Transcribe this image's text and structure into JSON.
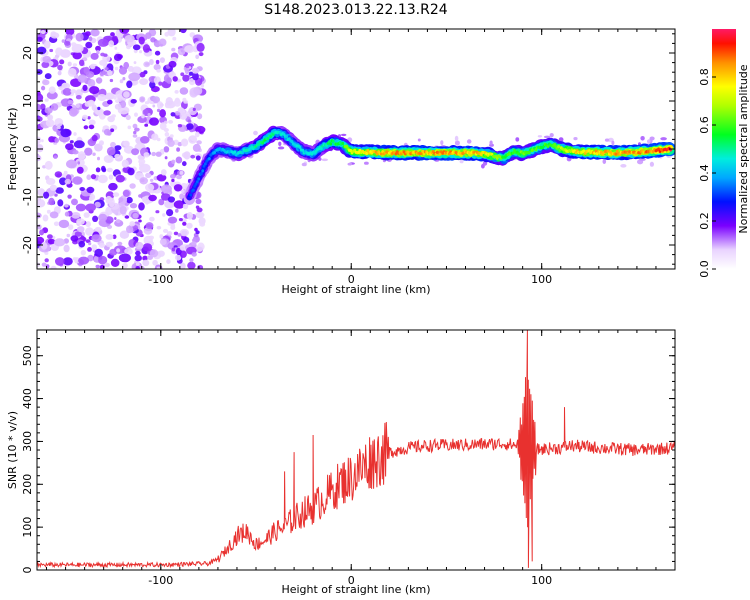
{
  "title": "S148.2023.013.22.13.R24",
  "chart_data": [
    {
      "type": "heatmap",
      "xlabel": "Height of straight line (km)",
      "ylabel": "Frequency (Hz)",
      "xlim": [
        -165,
        170
      ],
      "ylim": [
        -25,
        25
      ],
      "xticks": [
        -100,
        0,
        100
      ],
      "xtick_labels": [
        "-100",
        "0",
        "100"
      ],
      "yticks": [
        -20,
        -10,
        0,
        10,
        20
      ],
      "ytick_labels": [
        "-20",
        "-10",
        "0",
        "10",
        "20"
      ],
      "colorbar": {
        "label": "Normalized spectral amplitude",
        "range": [
          0,
          1
        ],
        "ticks": [
          0,
          0.2,
          0.4,
          0.6,
          0.8
        ],
        "tick_labels": [
          "0.0",
          "0.2",
          "0.4",
          "0.6",
          "0.8"
        ]
      },
      "noise_region_x": [
        -165,
        -78
      ],
      "ridge": {
        "x": [
          -85,
          -80,
          -75,
          -70,
          -60,
          -50,
          -45,
          -40,
          -35,
          -30,
          -25,
          -20,
          -15,
          -10,
          -5,
          0,
          20,
          40,
          60,
          70,
          75,
          80,
          83,
          86,
          90,
          95,
          100,
          105,
          110,
          120,
          140,
          150,
          160,
          168
        ],
        "y": [
          -10,
          -6,
          -2,
          0,
          -1,
          0.5,
          2,
          3.5,
          3,
          1,
          -0.5,
          -1,
          0.5,
          1.5,
          1,
          -0.5,
          -0.8,
          -0.8,
          -0.8,
          -1,
          -1.5,
          -2,
          -1,
          -0.5,
          -1,
          -0.3,
          0.5,
          1,
          0,
          -0.6,
          -0.8,
          -0.6,
          -0.3,
          0
        ],
        "amp": [
          0.3,
          0.35,
          0.35,
          0.4,
          0.45,
          0.5,
          0.55,
          0.5,
          0.45,
          0.45,
          0.45,
          0.45,
          0.5,
          0.55,
          0.55,
          0.75,
          0.85,
          0.85,
          0.85,
          0.8,
          0.7,
          0.6,
          0.6,
          0.6,
          0.65,
          0.6,
          0.6,
          0.6,
          0.7,
          0.8,
          0.85,
          0.85,
          0.9,
          0.95
        ]
      }
    },
    {
      "type": "line",
      "xlabel": "Height of straight line (km)",
      "ylabel": "SNR (10 * v/v)",
      "xlim": [
        -165,
        170
      ],
      "ylim": [
        0,
        560
      ],
      "xticks": [
        -100,
        0,
        100
      ],
      "xtick_labels": [
        "-100",
        "0",
        "100"
      ],
      "yticks": [
        0,
        100,
        200,
        300,
        400,
        500
      ],
      "ytick_labels": [
        "0",
        "100",
        "200",
        "300",
        "400",
        "500"
      ],
      "series": [
        {
          "name": "SNR",
          "color": "#e8312f",
          "x": [
            -165,
            -130,
            -100,
            -75,
            -70,
            -65,
            -60,
            -55,
            -50,
            -45,
            -40,
            -35,
            -30,
            -25,
            -20,
            -15,
            -10,
            -5,
            0,
            5,
            10,
            20,
            30,
            40,
            60,
            80,
            88,
            92,
            94,
            96,
            100,
            110,
            115,
            130,
            150,
            170
          ],
          "values": [
            12,
            12,
            12,
            15,
            25,
            50,
            80,
            90,
            60,
            70,
            90,
            100,
            120,
            135,
            145,
            165,
            185,
            205,
            215,
            235,
            255,
            275,
            285,
            290,
            292,
            295,
            290,
            285,
            285,
            280,
            282,
            285,
            290,
            285,
            280,
            285
          ],
          "spikes": [
            {
              "x": 92.5,
              "value": 560
            },
            {
              "x": 93.0,
              "value": 5
            },
            {
              "x": 91.5,
              "value": 450
            },
            {
              "x": 95.0,
              "value": 20
            },
            {
              "x": 112.0,
              "value": 380
            },
            {
              "x": -30,
              "value": 275
            },
            {
              "x": -35,
              "value": 230
            },
            {
              "x": -20,
              "value": 315
            }
          ]
        }
      ]
    }
  ]
}
